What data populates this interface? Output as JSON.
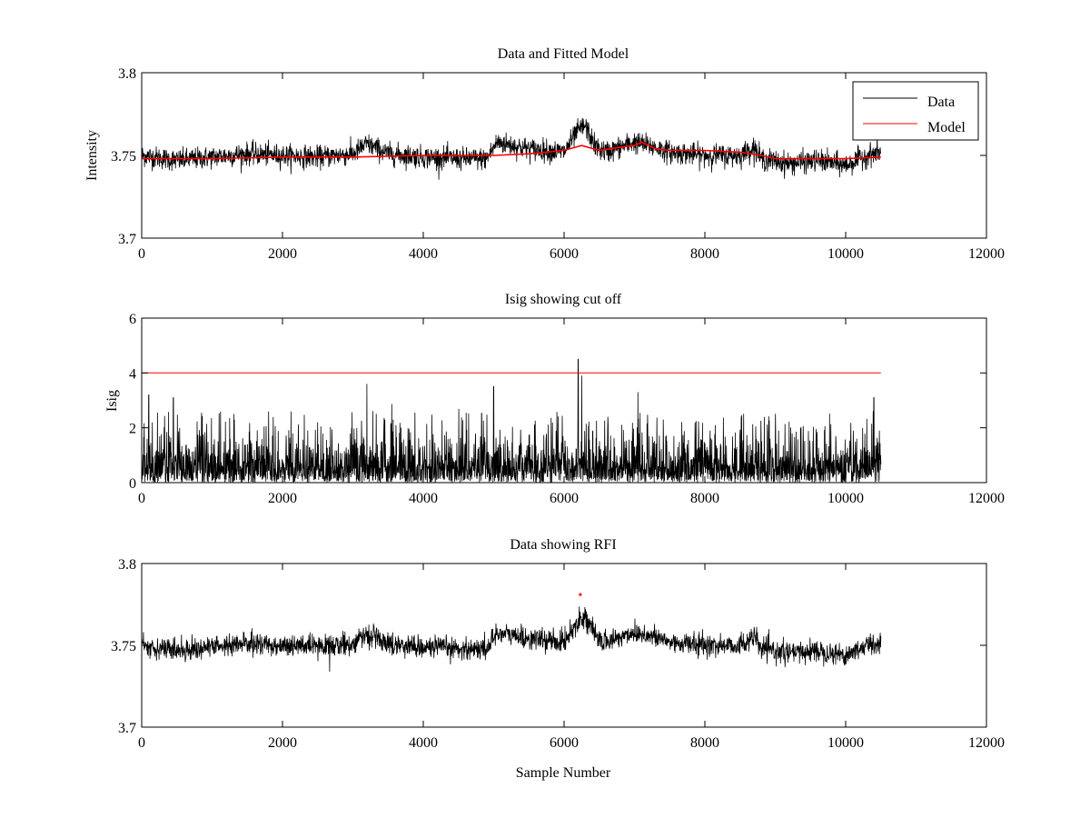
{
  "colors": {
    "data": "#000000",
    "model": "#ff0000",
    "axes": "#000000",
    "background": "#ffffff"
  },
  "chart_data": [
    {
      "type": "line",
      "title": "Data and Fitted Model",
      "xlabel": "",
      "ylabel": "Intensity",
      "xlim": [
        0,
        12000
      ],
      "ylim": [
        3.7,
        3.8
      ],
      "xticks": [
        "0",
        "2000",
        "4000",
        "6000",
        "8000",
        "10000",
        "12000"
      ],
      "yticks": [
        "3.7",
        "3.75",
        "3.8"
      ],
      "grid": false,
      "legend_position": "top-right",
      "series": [
        {
          "name": "Data",
          "color": "#000000",
          "style": "noisy-line",
          "x_range": [
            0,
            10500
          ],
          "baseline": [
            [
              0,
              3.75
            ],
            [
              500,
              3.747
            ],
            [
              1000,
              3.749
            ],
            [
              1500,
              3.751
            ],
            [
              2000,
              3.75
            ],
            [
              2500,
              3.749
            ],
            [
              3000,
              3.751
            ],
            [
              3200,
              3.757
            ],
            [
              3500,
              3.751
            ],
            [
              4000,
              3.749
            ],
            [
              4500,
              3.748
            ],
            [
              4900,
              3.748
            ],
            [
              5050,
              3.758
            ],
            [
              5500,
              3.754
            ],
            [
              6000,
              3.752
            ],
            [
              6200,
              3.765
            ],
            [
              6300,
              3.768
            ],
            [
              6450,
              3.755
            ],
            [
              6600,
              3.752
            ],
            [
              7000,
              3.758
            ],
            [
              7200,
              3.756
            ],
            [
              7500,
              3.752
            ],
            [
              8000,
              3.75
            ],
            [
              8500,
              3.75
            ],
            [
              8700,
              3.755
            ],
            [
              8800,
              3.748
            ],
            [
              9200,
              3.745
            ],
            [
              9600,
              3.747
            ],
            [
              10000,
              3.744
            ],
            [
              10300,
              3.75
            ],
            [
              10500,
              3.752
            ]
          ],
          "noise_amplitude": 0.0055
        },
        {
          "name": "Model",
          "color": "#ff0000",
          "style": "line",
          "points": [
            [
              0,
              3.748
            ],
            [
              1000,
              3.748
            ],
            [
              2000,
              3.749
            ],
            [
              3000,
              3.749
            ],
            [
              4000,
              3.75
            ],
            [
              5000,
              3.75
            ],
            [
              5500,
              3.751
            ],
            [
              6000,
              3.753
            ],
            [
              6250,
              3.756
            ],
            [
              6500,
              3.753
            ],
            [
              6800,
              3.755
            ],
            [
              7000,
              3.756
            ],
            [
              7100,
              3.758
            ],
            [
              7300,
              3.754
            ],
            [
              7500,
              3.753
            ],
            [
              8000,
              3.753
            ],
            [
              8500,
              3.752
            ],
            [
              8800,
              3.75
            ],
            [
              9000,
              3.748
            ],
            [
              9500,
              3.748
            ],
            [
              10000,
              3.748
            ],
            [
              10500,
              3.749
            ]
          ]
        }
      ]
    },
    {
      "type": "line",
      "title": "Isig showing cut off",
      "xlabel": "",
      "ylabel": "Isig",
      "xlim": [
        0,
        12000
      ],
      "ylim": [
        0,
        6
      ],
      "xticks": [
        "0",
        "2000",
        "4000",
        "6000",
        "8000",
        "10000",
        "12000"
      ],
      "yticks": [
        "0",
        "2",
        "4",
        "6"
      ],
      "grid": false,
      "series": [
        {
          "color": "#000000",
          "style": "spiky-line",
          "x_range": [
            0,
            10500
          ],
          "typical_max": 2.5,
          "peaks": [
            [
              100,
              3.2
            ],
            [
              450,
              3.1
            ],
            [
              3200,
              3.6
            ],
            [
              5000,
              3.5
            ],
            [
              6200,
              4.5
            ],
            [
              6250,
              3.9
            ],
            [
              7050,
              3.3
            ],
            [
              10400,
              3.1
            ]
          ]
        },
        {
          "color": "#ff0000",
          "style": "line",
          "points": [
            [
              0,
              4
            ],
            [
              10500,
              4
            ]
          ]
        }
      ]
    },
    {
      "type": "line",
      "title": "Data showing RFI",
      "xlabel": "Sample Number",
      "ylabel": "",
      "xlim": [
        0,
        12000
      ],
      "ylim": [
        3.7,
        3.8
      ],
      "xticks": [
        "0",
        "2000",
        "4000",
        "6000",
        "8000",
        "10000",
        "12000"
      ],
      "yticks": [
        "3.7",
        "3.75",
        "3.8"
      ],
      "grid": false,
      "series": [
        {
          "color": "#000000",
          "style": "noisy-line",
          "x_range": [
            0,
            10500
          ],
          "baseline": [
            [
              0,
              3.75
            ],
            [
              500,
              3.747
            ],
            [
              1000,
              3.749
            ],
            [
              1500,
              3.751
            ],
            [
              2000,
              3.75
            ],
            [
              2500,
              3.749
            ],
            [
              3000,
              3.751
            ],
            [
              3200,
              3.757
            ],
            [
              3500,
              3.751
            ],
            [
              4000,
              3.749
            ],
            [
              4500,
              3.748
            ],
            [
              4900,
              3.748
            ],
            [
              5050,
              3.758
            ],
            [
              5500,
              3.754
            ],
            [
              6000,
              3.752
            ],
            [
              6200,
              3.765
            ],
            [
              6300,
              3.768
            ],
            [
              6450,
              3.755
            ],
            [
              6600,
              3.752
            ],
            [
              7000,
              3.758
            ],
            [
              7200,
              3.756
            ],
            [
              7500,
              3.752
            ],
            [
              8000,
              3.75
            ],
            [
              8500,
              3.75
            ],
            [
              8700,
              3.755
            ],
            [
              8800,
              3.748
            ],
            [
              9200,
              3.745
            ],
            [
              9600,
              3.747
            ],
            [
              10000,
              3.744
            ],
            [
              10300,
              3.75
            ],
            [
              10500,
              3.752
            ]
          ],
          "noise_amplitude": 0.0055
        },
        {
          "color": "#ff0000",
          "style": "marker",
          "points": [
            [
              6230,
              3.781
            ]
          ]
        }
      ]
    }
  ]
}
